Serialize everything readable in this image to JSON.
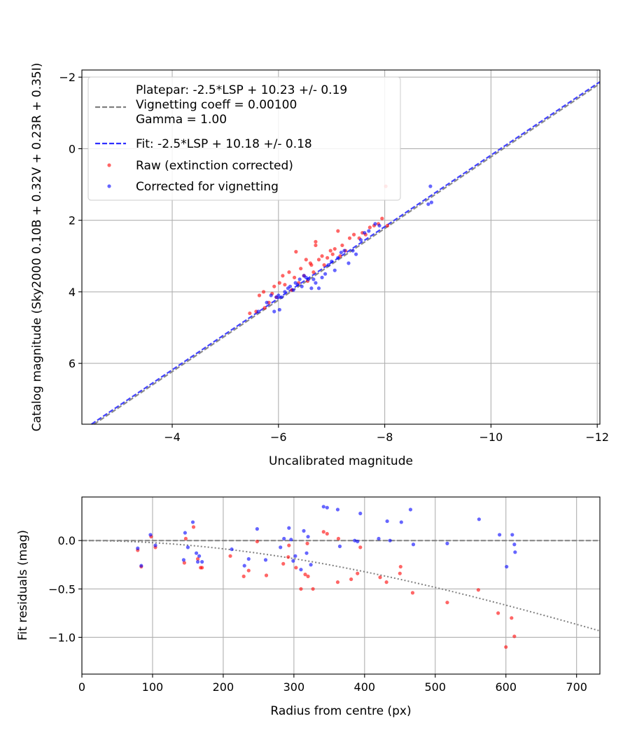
{
  "chart_data": [
    {
      "type": "scatter",
      "xlabel": "Uncalibrated magnitude",
      "ylabel": "Catalog magnitude (Sky2000 0.10B + 0.32V + 0.23R + 0.35I)",
      "xlim": [
        -2.3,
        -12.05
      ],
      "ylim": [
        7.7,
        -2.2
      ],
      "x_inverted": true,
      "y_inverted": true,
      "xticks": [
        -4,
        -6,
        -8,
        -10,
        -12
      ],
      "xtick_labels": [
        "−4",
        "−6",
        "−8",
        "−10",
        "−12"
      ],
      "yticks": [
        -2,
        0,
        2,
        4,
        6
      ],
      "ytick_labels": [
        "−2",
        "0",
        "2",
        "4",
        "6"
      ],
      "grid": true,
      "legend_position": "top-left",
      "lines": [
        {
          "name": "Platepar: -2.5*LSP + 10.23 +/- 0.19\nVignetting coeff = 0.00100\nGamma = 1.00",
          "style": "dashed",
          "color": "#808080",
          "slope": 1,
          "intercept": 10.23
        },
        {
          "name": "Fit: -2.5*LSP + 10.18 +/- 0.18",
          "style": "dashed",
          "color": "#3030ff",
          "slope": 1,
          "intercept": 10.18
        }
      ],
      "series": [
        {
          "name": "Raw (extinction corrected)",
          "color": "#ff0000",
          "x": [
            -5.46,
            -5.58,
            -5.64,
            -5.72,
            -5.74,
            -5.82,
            -5.88,
            -5.92,
            -5.96,
            -6.02,
            -6.08,
            -6.12,
            -6.2,
            -6.25,
            -6.3,
            -6.33,
            -6.38,
            -6.42,
            -6.48,
            -6.52,
            -6.55,
            -6.6,
            -6.62,
            -6.66,
            -6.7,
            -6.7,
            -6.76,
            -6.82,
            -6.86,
            -6.92,
            -6.98,
            -7.02,
            -7.06,
            -7.12,
            -7.16,
            -7.2,
            -7.26,
            -7.34,
            -7.42,
            -7.52,
            -7.58,
            -7.64,
            -7.72,
            -7.8,
            -7.88,
            -8.02,
            -7.95,
            -8.05
          ],
          "y": [
            4.6,
            4.55,
            4.1,
            4.0,
            4.45,
            4.3,
            4.05,
            3.85,
            4.15,
            3.75,
            3.55,
            3.8,
            3.45,
            3.95,
            3.6,
            2.88,
            3.75,
            3.35,
            3.55,
            3.1,
            3.7,
            3.2,
            3.25,
            3.45,
            2.7,
            2.6,
            3.1,
            3.0,
            3.25,
            3.05,
            2.85,
            2.95,
            2.8,
            2.3,
            3.0,
            2.7,
            2.85,
            2.5,
            2.4,
            2.5,
            2.35,
            2.4,
            2.2,
            2.15,
            2.1,
            1.05,
            1.95,
            2.15
          ]
        },
        {
          "name": "Corrected for vignetting",
          "color": "#0000ff",
          "x": [
            -5.62,
            -5.78,
            -5.86,
            -5.92,
            -5.96,
            -6.0,
            -6.02,
            -6.06,
            -6.12,
            -6.18,
            -6.22,
            -6.28,
            -6.32,
            -6.36,
            -6.4,
            -6.44,
            -6.48,
            -6.52,
            -6.56,
            -6.62,
            -6.66,
            -6.7,
            -6.76,
            -6.82,
            -6.88,
            -6.94,
            -7.0,
            -7.06,
            -7.12,
            -7.18,
            -7.24,
            -7.32,
            -7.4,
            -7.46,
            -7.55,
            -7.62,
            -7.7,
            -7.82,
            -7.9,
            -8.82,
            -8.86,
            -8.88
          ],
          "y": [
            4.55,
            4.3,
            4.1,
            4.55,
            4.15,
            4.1,
            4.5,
            4.15,
            4.0,
            3.9,
            3.85,
            3.95,
            3.75,
            3.8,
            3.65,
            3.85,
            3.55,
            3.6,
            3.65,
            3.9,
            3.65,
            3.75,
            3.9,
            3.6,
            3.5,
            3.25,
            3.15,
            3.4,
            3.05,
            2.9,
            2.85,
            3.2,
            2.85,
            2.95,
            2.55,
            2.35,
            2.3,
            2.1,
            2.15,
            1.55,
            1.05,
            1.5
          ]
        }
      ]
    },
    {
      "type": "scatter",
      "xlabel": "Radius from centre (px)",
      "ylabel": "Fit residuals (mag)",
      "xlim": [
        0,
        733
      ],
      "ylim": [
        -1.38,
        0.45
      ],
      "xticks": [
        0,
        100,
        200,
        300,
        400,
        500,
        600,
        700
      ],
      "xtick_labels": [
        "0",
        "100",
        "200",
        "300",
        "400",
        "500",
        "600",
        "700"
      ],
      "yticks": [
        -1.0,
        -0.5,
        0.0
      ],
      "ytick_labels": [
        "−1.0",
        "−0.5",
        "0.0"
      ],
      "grid": true,
      "lines": [
        {
          "style": "dashed",
          "color": "#808080",
          "value": 0.0
        },
        {
          "style": "dotted",
          "color": "#808080",
          "curve": "-0.00100*r (vignetting)",
          "coeff": 0.001
        }
      ],
      "series": [
        {
          "name": "Raw (extinction corrected)",
          "color": "#ff0000",
          "x": [
            79,
            84,
            98,
            104,
            145,
            147,
            158,
            164,
            168,
            170,
            210,
            229,
            236,
            248,
            261,
            285,
            292,
            293,
            303,
            310,
            316,
            319,
            320,
            327,
            342,
            347,
            362,
            363,
            381,
            390,
            394,
            422,
            431,
            450,
            451,
            468,
            517,
            561,
            589,
            600,
            608,
            612
          ],
          "y": [
            -0.1,
            -0.27,
            0.04,
            -0.07,
            -0.23,
            0.02,
            0.14,
            -0.19,
            -0.28,
            -0.28,
            -0.16,
            -0.37,
            -0.31,
            -0.01,
            -0.36,
            -0.24,
            -0.17,
            -0.05,
            -0.28,
            -0.5,
            -0.35,
            -0.03,
            -0.37,
            -0.5,
            0.09,
            0.07,
            -0.43,
            0.02,
            -0.4,
            -0.34,
            -0.07,
            -0.38,
            -0.43,
            -0.34,
            -0.27,
            -0.54,
            -0.64,
            -0.51,
            -0.75,
            -1.1,
            -0.8,
            -0.99
          ]
        },
        {
          "name": "Corrected for vignetting",
          "color": "#0000ff",
          "x": [
            79,
            84,
            97,
            104,
            144,
            146,
            150,
            157,
            162,
            164,
            166,
            170,
            212,
            230,
            236,
            248,
            260,
            281,
            286,
            293,
            296,
            299,
            302,
            310,
            314,
            318,
            320,
            324,
            342,
            347,
            362,
            365,
            386,
            390,
            394,
            420,
            432,
            436,
            452,
            465,
            469,
            517,
            562,
            591,
            601,
            609,
            612,
            613
          ],
          "y": [
            -0.08,
            -0.26,
            0.06,
            -0.05,
            -0.2,
            0.08,
            -0.07,
            0.19,
            -0.13,
            -0.22,
            -0.16,
            -0.22,
            -0.09,
            -0.26,
            -0.19,
            0.12,
            -0.2,
            -0.07,
            0.02,
            0.13,
            0.01,
            -0.21,
            -0.16,
            -0.3,
            0.1,
            -0.13,
            0.04,
            -0.25,
            0.35,
            0.34,
            0.32,
            -0.06,
            0.0,
            -0.01,
            0.28,
            0.02,
            0.2,
            0.0,
            0.19,
            0.32,
            -0.04,
            -0.03,
            0.22,
            0.06,
            -0.27,
            0.06,
            -0.04,
            -0.12
          ]
        }
      ]
    }
  ]
}
